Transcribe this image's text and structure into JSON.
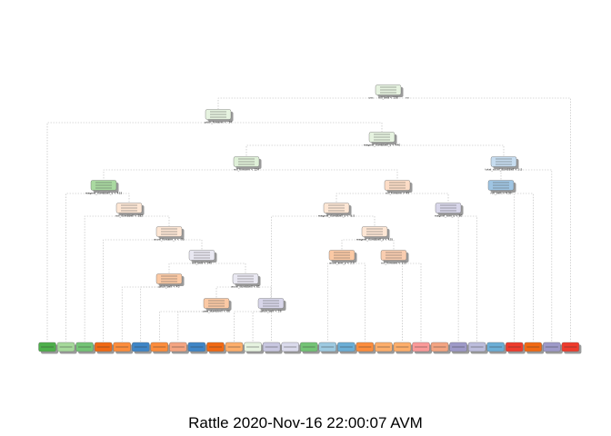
{
  "caption": "Rattle 2020-Nov-16 22:00:07 AVM",
  "nodes": [
    {
      "id": 1,
      "fill": "#e6f3e0",
      "split": "roll_belt < 130",
      "split_yes": "yes",
      "split_no": "no"
    },
    {
      "id": 2,
      "fill": "#e6f3e0",
      "split": "pitch_forearm < -34"
    },
    {
      "id": 3,
      "fill": "#e6f3e0",
      "split": "magnet_dumbbell_y < 440"
    },
    {
      "id": 4,
      "fill": "#dff0d8",
      "split": "roll_forearm < 124"
    },
    {
      "id": 5,
      "fill": "#c6dcef",
      "split": "total_accel_dumbbell < 3.5"
    },
    {
      "id": 6,
      "fill": "#a9d9a0",
      "split": "magnet_dumbbell_y < 433"
    },
    {
      "id": 7,
      "fill": "#fcdcc6",
      "split": "roll_forearm > 49"
    },
    {
      "id": 8,
      "fill": "#9fc5e3",
      "split": "roll_belt > 4.39"
    },
    {
      "id": 9,
      "fill": "#fde6d4",
      "split": "roll_dumbbell < 182"
    },
    {
      "id": 10,
      "fill": "#fde6d4",
      "split": "magnet_dumbbell_z < -8.5"
    },
    {
      "id": 11,
      "fill": "#d8d6ea",
      "split": "magnet_arm_y < 80"
    },
    {
      "id": 12,
      "fill": "#fde6d4",
      "split": "accel_forearm_x < -90"
    },
    {
      "id": 13,
      "fill": "#fde6d4",
      "split": "magnet_dumbbell_z < 425"
    },
    {
      "id": 14,
      "fill": "#fbc9a4",
      "split": "accel_arm_y < 2.5"
    },
    {
      "id": 15,
      "fill": "#f9cdb0",
      "split": "roll_forearm < 113"
    },
    {
      "id": 16,
      "fill": "#e9e8f2",
      "split": "roll_belt < 145"
    },
    {
      "id": 17,
      "fill": "#fbc9a4",
      "split": "pitch_belt < 43"
    },
    {
      "id": 18,
      "fill": "#e9e8f2",
      "split": "accel_dumbbell < 61"
    },
    {
      "id": 19,
      "fill": "#fbc9a4",
      "split": "yaw_dumbbell < 66"
    },
    {
      "id": 20,
      "fill": "#d8d6ea",
      "split": "pitch_belt < 28"
    }
  ],
  "leaves": [
    {
      "fill": "#4daf4a",
      "label": "A"
    },
    {
      "fill": "#a6d99b",
      "label": "B"
    },
    {
      "fill": "#74c476",
      "label": "C"
    },
    {
      "fill": "#f16913",
      "label": "D"
    },
    {
      "fill": "#fd8d3c",
      "label": "E"
    },
    {
      "fill": "#3f86c7",
      "label": "F"
    },
    {
      "fill": "#fd8d3c",
      "label": "G"
    },
    {
      "fill": "#f4a582",
      "label": "H"
    },
    {
      "fill": "#3f86c7",
      "label": "I"
    },
    {
      "fill": "#f16913",
      "label": "J"
    },
    {
      "fill": "#fdae6b",
      "label": "K"
    },
    {
      "fill": "#e6f3e0",
      "label": "L"
    },
    {
      "fill": "#c8c7e0",
      "label": "M"
    },
    {
      "fill": "#dadaeb",
      "label": "N"
    },
    {
      "fill": "#74c476",
      "label": "O"
    },
    {
      "fill": "#9ecae1",
      "label": "P"
    },
    {
      "fill": "#6baed6",
      "label": "Q"
    },
    {
      "fill": "#fd8d3c",
      "label": "R"
    },
    {
      "fill": "#fdae6b",
      "label": "S"
    },
    {
      "fill": "#fdae6b",
      "label": "T"
    },
    {
      "fill": "#fb9a99",
      "label": "U"
    },
    {
      "fill": "#f4a582",
      "label": "V"
    },
    {
      "fill": "#9e9ac8",
      "label": "W"
    },
    {
      "fill": "#bcbddc",
      "label": "X"
    },
    {
      "fill": "#6baed6",
      "label": "Y"
    },
    {
      "fill": "#ef3b2c",
      "label": "Z"
    },
    {
      "fill": "#f16913",
      "label": "AA"
    },
    {
      "fill": "#9e9ac8",
      "label": "AB"
    },
    {
      "fill": "#ef3b2c",
      "label": "AC"
    }
  ]
}
